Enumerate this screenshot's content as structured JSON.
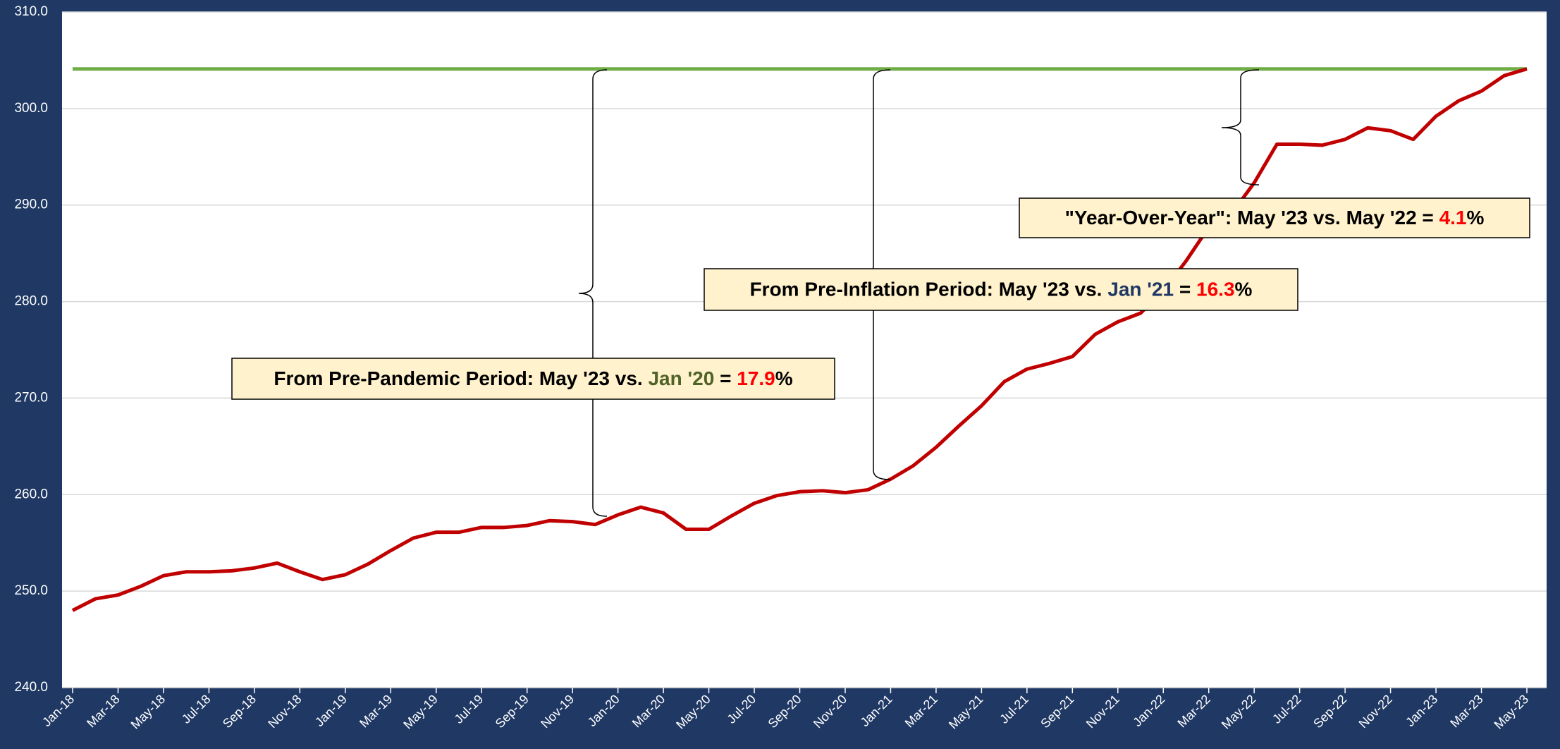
{
  "chart_data": {
    "type": "line",
    "categories": [
      "Jan-18",
      null,
      "Mar-18",
      null,
      "May-18",
      null,
      "Jul-18",
      null,
      "Sep-18",
      null,
      "Nov-18",
      null,
      "Jan-19",
      null,
      "Mar-19",
      null,
      "May-19",
      null,
      "Jul-19",
      null,
      "Sep-19",
      null,
      "Nov-19",
      null,
      "Jan-20",
      null,
      "Mar-20",
      null,
      "May-20",
      null,
      "Jul-20",
      null,
      "Sep-20",
      null,
      "Nov-20",
      null,
      "Jan-21",
      null,
      "Mar-21",
      null,
      "May-21",
      null,
      "Jul-21",
      null,
      "Sep-21",
      null,
      "Nov-21",
      null,
      "Jan-22",
      null,
      "Mar-22",
      null,
      "May-22",
      null,
      "Jul-22",
      null,
      "Sep-22",
      null,
      "Nov-22",
      null,
      "Jan-23",
      null,
      "Mar-23",
      null,
      "May-23"
    ],
    "series": [
      {
        "color": "#c00000",
        "values": [
          248.0,
          249.2,
          249.6,
          250.5,
          251.6,
          252.0,
          252.0,
          252.1,
          252.4,
          252.9,
          252.0,
          251.2,
          251.7,
          252.8,
          254.2,
          255.5,
          256.1,
          256.1,
          256.6,
          256.6,
          256.8,
          257.3,
          257.2,
          256.9,
          257.9,
          258.7,
          258.1,
          256.4,
          256.4,
          257.8,
          259.1,
          259.9,
          260.3,
          260.4,
          260.2,
          260.5,
          261.6,
          263.0,
          264.9,
          267.1,
          269.2,
          271.7,
          273.0,
          273.6,
          274.3,
          276.6,
          277.9,
          278.8,
          281.1,
          284.2,
          287.7,
          289.1,
          292.3,
          296.3,
          296.3,
          296.2,
          296.8,
          298.0,
          297.7,
          296.8,
          299.2,
          300.8,
          301.8,
          303.4,
          304.1
        ]
      }
    ],
    "reference_line": {
      "value": 304.1,
      "color": "#70ad47"
    },
    "ylim": [
      240,
      310
    ],
    "yticks": [
      {
        "value": 240,
        "label": "240.0"
      },
      {
        "value": 250,
        "label": "250.0"
      },
      {
        "value": 260,
        "label": "260.0"
      },
      {
        "value": 270,
        "label": "270.0"
      },
      {
        "value": 280,
        "label": "280.0"
      },
      {
        "value": 290,
        "label": "290.0"
      },
      {
        "value": 300,
        "label": "300.0"
      },
      {
        "value": 310,
        "label": "310.0"
      }
    ],
    "grid": true,
    "annotations": [
      {
        "parts": [
          {
            "text": "From Pre-Pandemic Period: May '23 vs. ",
            "color": "#000000"
          },
          {
            "text": "Jan '20",
            "color": "#4f6228"
          },
          {
            "text": " = ",
            "color": "#000000"
          },
          {
            "text": "17.9",
            "color": "#ff0000"
          },
          {
            "text": "%",
            "color": "#000000"
          }
        ]
      },
      {
        "parts": [
          {
            "text": "From Pre-Inflation Period: May '23 vs. ",
            "color": "#000000"
          },
          {
            "text": "Jan '21",
            "color": "#1f3864"
          },
          {
            "text": " = ",
            "color": "#000000"
          },
          {
            "text": "16.3",
            "color": "#ff0000"
          },
          {
            "text": "%",
            "color": "#000000"
          }
        ]
      },
      {
        "parts": [
          {
            "text": "\"Year-Over-Year\": May '23 vs. May '22 = ",
            "color": "#000000"
          },
          {
            "text": "4.1",
            "color": "#ff0000"
          },
          {
            "text": "%",
            "color": "#000000"
          }
        ]
      }
    ]
  }
}
